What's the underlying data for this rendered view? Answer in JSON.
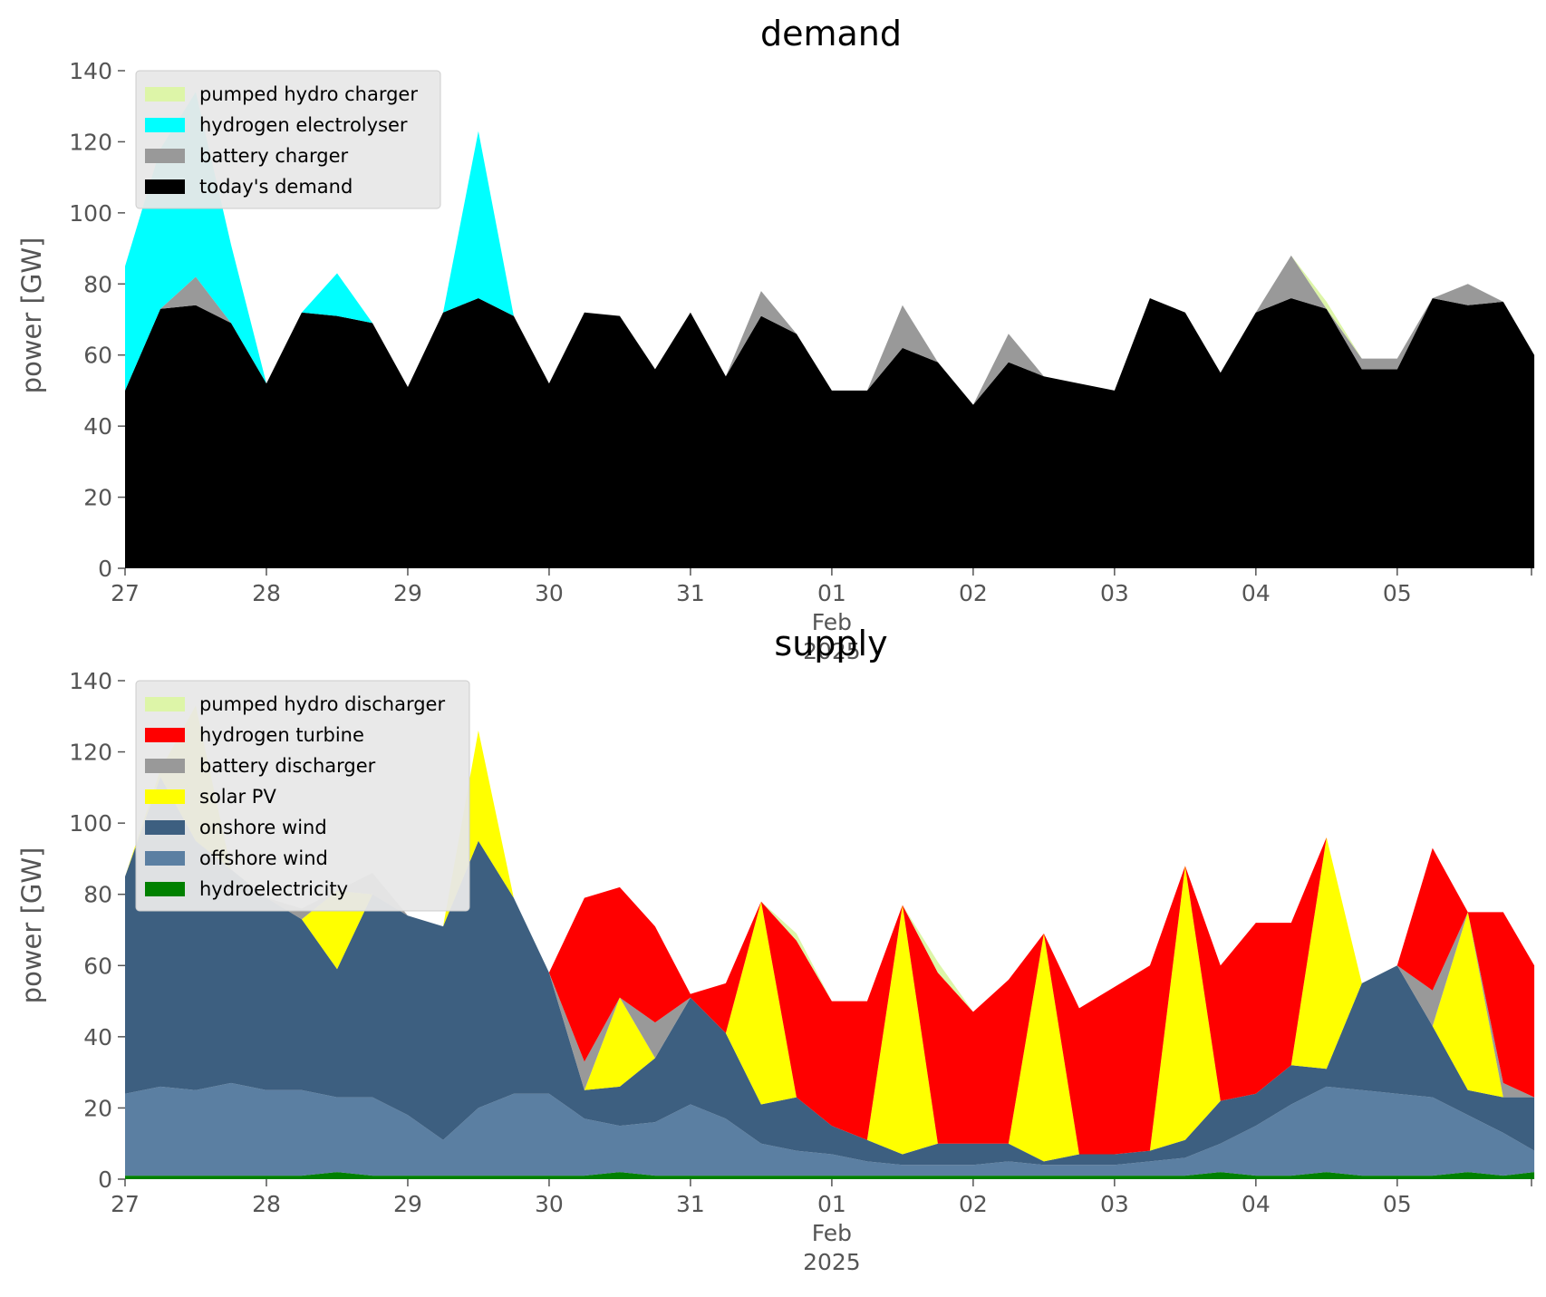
{
  "chart_data": [
    {
      "type": "area",
      "stacked": true,
      "title": "demand",
      "ylabel": "power [GW]",
      "xlabel": "",
      "ylim": [
        0,
        140
      ],
      "yticks": [
        0,
        20,
        40,
        60,
        80,
        100,
        120,
        140
      ],
      "xticks": [
        "27",
        "28",
        "29",
        "30",
        "31",
        "01",
        "02",
        "03",
        "04",
        "05"
      ],
      "xtick_sub": [
        "Feb",
        "2025"
      ],
      "legend_position": "upper-left",
      "grid": false,
      "x": [
        27.0,
        27.25,
        27.5,
        27.75,
        28.0,
        28.25,
        28.5,
        28.75,
        29.0,
        29.25,
        29.5,
        29.75,
        30.0,
        30.25,
        30.5,
        30.75,
        31.0,
        31.25,
        31.5,
        31.75,
        32.0,
        32.25,
        32.5,
        32.75,
        33.0,
        33.25,
        33.5,
        33.75,
        34.0,
        34.25,
        34.5,
        34.75,
        35.0,
        35.25,
        35.5,
        35.75,
        36.0,
        36.25,
        36.5,
        36.75,
        36.97
      ],
      "series": [
        {
          "name": "today's demand",
          "color": "#000000",
          "values": [
            50,
            73,
            74,
            69,
            52,
            72,
            71,
            69,
            51,
            72,
            76,
            71,
            52,
            72,
            71,
            56,
            72,
            54,
            71,
            66,
            50,
            50,
            62,
            58,
            46,
            58,
            54,
            52,
            50,
            76,
            72,
            55,
            72,
            76,
            73,
            56,
            56,
            76,
            74,
            75,
            60
          ]
        },
        {
          "name": "battery charger",
          "color": "#999999",
          "values": [
            0,
            0,
            8,
            0,
            0,
            0,
            0,
            0,
            0,
            0,
            0,
            0,
            0,
            0,
            0,
            0,
            0,
            0,
            7,
            0,
            0,
            0,
            12,
            0,
            0,
            8,
            0,
            0,
            0,
            0,
            0,
            0,
            0,
            12,
            0,
            3,
            3,
            0,
            6,
            0,
            0
          ]
        },
        {
          "name": "hydrogen electrolyser",
          "color": "#00ffff",
          "values": [
            35,
            45,
            52,
            22,
            0,
            0,
            12,
            0,
            0,
            0,
            47,
            0,
            0,
            0,
            0,
            0,
            0,
            0,
            0,
            0,
            0,
            0,
            0,
            0,
            0,
            0,
            0,
            0,
            0,
            0,
            0,
            0,
            0,
            0,
            0,
            0,
            0,
            0,
            0,
            0,
            0
          ]
        },
        {
          "name": "pumped hydro charger",
          "color": "#ddf5a8",
          "values": [
            0,
            0,
            0,
            0,
            0,
            0,
            0,
            0,
            0,
            0,
            0,
            0,
            0,
            0,
            0,
            0,
            0,
            0,
            0,
            0,
            0,
            0,
            0,
            0,
            0,
            0,
            0,
            0,
            0,
            0,
            0,
            0,
            0,
            0,
            2,
            0,
            0,
            0,
            0,
            0,
            0
          ]
        }
      ]
    },
    {
      "type": "area",
      "stacked": true,
      "title": "supply",
      "ylabel": "power [GW]",
      "xlabel": "",
      "ylim": [
        0,
        140
      ],
      "yticks": [
        0,
        20,
        40,
        60,
        80,
        100,
        120,
        140
      ],
      "xticks": [
        "27",
        "28",
        "29",
        "30",
        "31",
        "01",
        "02",
        "03",
        "04",
        "05"
      ],
      "xtick_sub": [
        "Feb",
        "2025"
      ],
      "legend_position": "upper-left",
      "grid": false,
      "x": [
        27.0,
        27.25,
        27.5,
        27.75,
        28.0,
        28.25,
        28.5,
        28.75,
        29.0,
        29.25,
        29.5,
        29.75,
        30.0,
        30.25,
        30.5,
        30.75,
        31.0,
        31.25,
        31.5,
        31.75,
        32.0,
        32.25,
        32.5,
        32.75,
        33.0,
        33.25,
        33.5,
        33.75,
        34.0,
        34.25,
        34.5,
        34.75,
        35.0,
        35.25,
        35.5,
        35.75,
        36.0,
        36.25,
        36.5,
        36.75,
        36.97
      ],
      "series": [
        {
          "name": "hydroelectricity",
          "color": "#008000",
          "values": [
            1,
            1,
            1,
            1,
            1,
            1,
            2,
            1,
            1,
            1,
            1,
            1,
            1,
            1,
            2,
            1,
            1,
            1,
            1,
            1,
            1,
            1,
            1,
            1,
            1,
            1,
            1,
            1,
            1,
            1,
            1,
            2,
            1,
            1,
            2,
            1,
            1,
            1,
            2,
            1,
            2
          ]
        },
        {
          "name": "offshore wind",
          "color": "#5b7fa2",
          "values": [
            23,
            25,
            24,
            26,
            24,
            24,
            21,
            22,
            17,
            10,
            19,
            23,
            23,
            16,
            13,
            15,
            20,
            16,
            9,
            7,
            6,
            4,
            3,
            3,
            3,
            4,
            3,
            3,
            3,
            4,
            5,
            8,
            14,
            20,
            24,
            24,
            23,
            22,
            16,
            12,
            6
          ]
        },
        {
          "name": "onshore wind",
          "color": "#3d5f80",
          "values": [
            61,
            87,
            70,
            60,
            54,
            48,
            36,
            57,
            56,
            60,
            75,
            55,
            34,
            8,
            11,
            18,
            30,
            24,
            11,
            15,
            8,
            6,
            3,
            6,
            6,
            5,
            1,
            3,
            3,
            3,
            5,
            12,
            9,
            11,
            5,
            30,
            36,
            20,
            7,
            10,
            15
          ]
        },
        {
          "name": "solar PV",
          "color": "#ffff00",
          "values": [
            0,
            2,
            38,
            0,
            0,
            0,
            22,
            0,
            0,
            0,
            31,
            0,
            0,
            0,
            25,
            0,
            0,
            0,
            57,
            0,
            0,
            0,
            70,
            0,
            0,
            0,
            64,
            0,
            0,
            0,
            77,
            0,
            0,
            0,
            65,
            0,
            0,
            0,
            50,
            0,
            0
          ]
        },
        {
          "name": "battery discharger",
          "color": "#999999",
          "values": [
            0,
            0,
            0,
            0,
            0,
            3,
            0,
            6,
            0,
            0,
            0,
            0,
            0,
            8,
            0,
            10,
            0,
            0,
            0,
            0,
            0,
            0,
            0,
            0,
            0,
            0,
            0,
            0,
            0,
            0,
            0,
            0,
            0,
            0,
            0,
            0,
            0,
            10,
            0,
            4,
            0
          ]
        },
        {
          "name": "hydrogen turbine",
          "color": "#ff0000",
          "values": [
            0,
            0,
            0,
            0,
            0,
            0,
            0,
            0,
            0,
            0,
            0,
            0,
            0,
            46,
            31,
            27,
            1,
            14,
            0,
            44,
            35,
            39,
            0,
            48,
            37,
            46,
            0,
            41,
            47,
            52,
            0,
            38,
            48,
            40,
            0,
            0,
            0,
            40,
            0,
            48,
            37
          ]
        },
        {
          "name": "pumped hydro discharger",
          "color": "#ddf5a8",
          "values": [
            0,
            0,
            0,
            0,
            0,
            0,
            0,
            0,
            0,
            0,
            0,
            0,
            0,
            0,
            0,
            0,
            0,
            0,
            0,
            2,
            0,
            0,
            0,
            3,
            0,
            0,
            0,
            0,
            0,
            0,
            0,
            0,
            0,
            0,
            0,
            0,
            0,
            0,
            0,
            0,
            0
          ]
        }
      ]
    }
  ]
}
